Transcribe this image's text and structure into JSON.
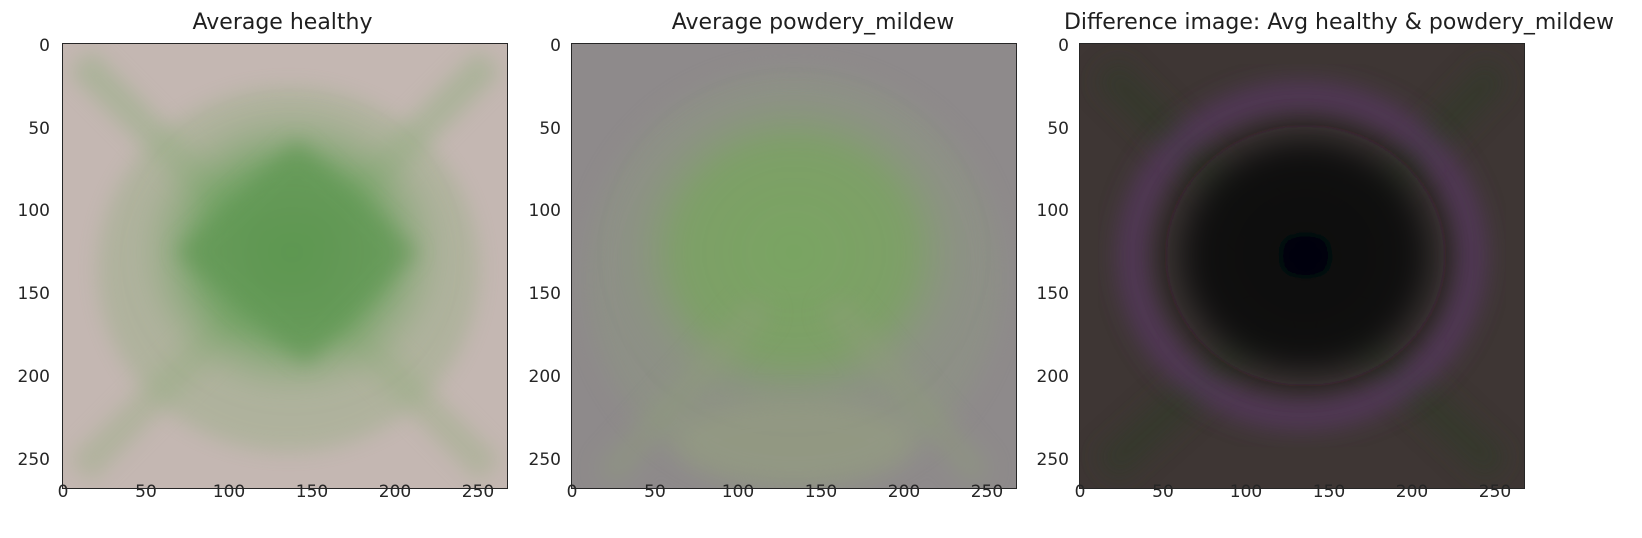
{
  "figure": {
    "panels": [
      {
        "title": "Average healthy",
        "background": "#c4b7b2",
        "blob": "#5e9a53",
        "ticks": [
          "0",
          "50",
          "100",
          "150",
          "200",
          "250"
        ]
      },
      {
        "title": "Average powdery_mildew",
        "background": "#8e8a8b",
        "blob": "#75a35e",
        "ticks": [
          "0",
          "50",
          "100",
          "150",
          "200",
          "250"
        ]
      },
      {
        "title": "Difference image: Avg healthy & powdery_mildew",
        "background": "#3e3634",
        "blob": "#060607",
        "ring": "#5a3966",
        "ticks": [
          "0",
          "50",
          "100",
          "150",
          "200",
          "250"
        ]
      }
    ]
  }
}
